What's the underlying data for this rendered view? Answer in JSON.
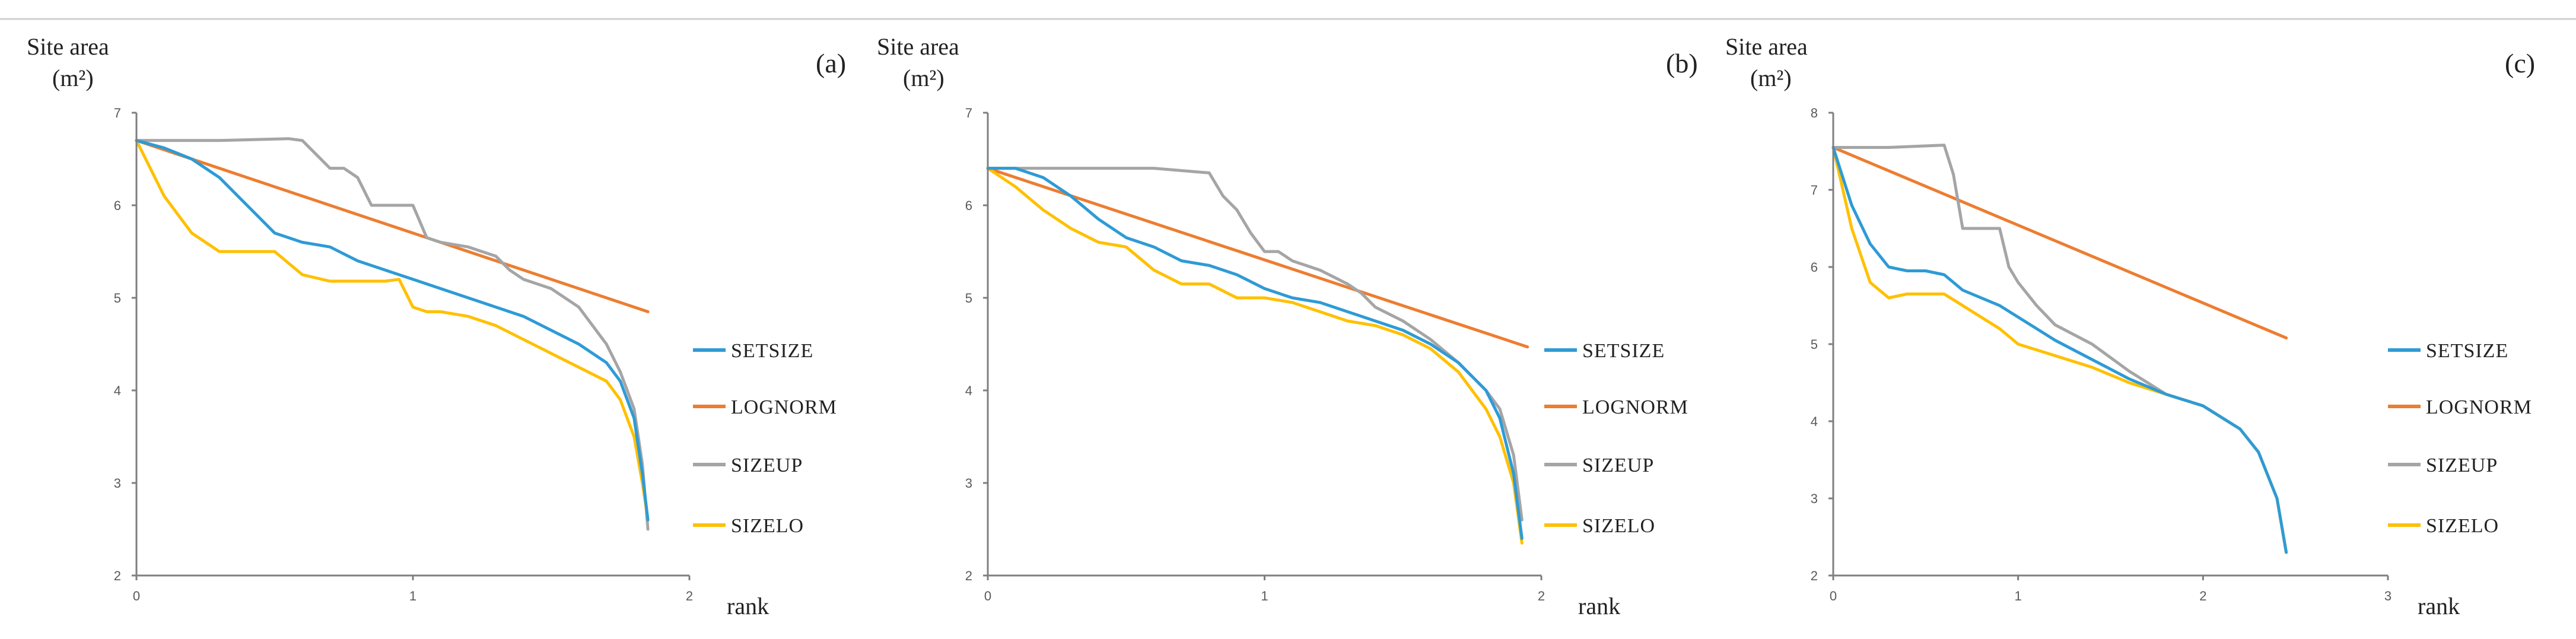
{
  "chart_data": [
    {
      "type": "line",
      "panel_label": "(a)",
      "ylabel": "Site area",
      "yunit": "(m²)",
      "xlabel": "rank",
      "xlim": [
        0,
        2
      ],
      "ylim": [
        2,
        7
      ],
      "xticks": [
        "0",
        "1",
        "2"
      ],
      "yticks": [
        "2",
        "3",
        "4",
        "5",
        "6",
        "7"
      ],
      "legend_position": "right",
      "series": [
        {
          "name": "SETSIZE",
          "color": "#2e9bd6",
          "x": [
            0,
            0.1,
            0.2,
            0.3,
            0.4,
            0.5,
            0.6,
            0.7,
            0.8,
            0.9,
            1.0,
            1.1,
            1.2,
            1.3,
            1.4,
            1.5,
            1.6,
            1.7,
            1.75,
            1.8,
            1.83,
            1.85
          ],
          "y": [
            6.7,
            6.62,
            6.5,
            6.3,
            6.0,
            5.7,
            5.6,
            5.55,
            5.4,
            5.3,
            5.2,
            5.1,
            5.0,
            4.9,
            4.8,
            4.65,
            4.5,
            4.3,
            4.1,
            3.7,
            3.1,
            2.6
          ]
        },
        {
          "name": "LOGNORM",
          "color": "#ed7d31",
          "x": [
            0,
            1.85
          ],
          "y": [
            6.7,
            4.85
          ]
        },
        {
          "name": "SIZEUP",
          "color": "#a5a5a5",
          "x": [
            0,
            0.3,
            0.55,
            0.6,
            0.7,
            0.75,
            0.8,
            0.85,
            0.9,
            0.95,
            1.0,
            1.05,
            1.1,
            1.2,
            1.3,
            1.35,
            1.4,
            1.5,
            1.6,
            1.7,
            1.75,
            1.8,
            1.83,
            1.85
          ],
          "y": [
            6.7,
            6.7,
            6.72,
            6.7,
            6.4,
            6.4,
            6.3,
            6.0,
            6.0,
            6.0,
            6.0,
            5.65,
            5.6,
            5.55,
            5.45,
            5.3,
            5.2,
            5.1,
            4.9,
            4.5,
            4.2,
            3.8,
            3.2,
            2.5
          ]
        },
        {
          "name": "SIZELO",
          "color": "#ffc000",
          "x": [
            0,
            0.1,
            0.2,
            0.3,
            0.4,
            0.5,
            0.6,
            0.7,
            0.8,
            0.9,
            0.95,
            1.0,
            1.05,
            1.1,
            1.2,
            1.3,
            1.4,
            1.5,
            1.6,
            1.7,
            1.75,
            1.8,
            1.83,
            1.85
          ],
          "y": [
            6.7,
            6.1,
            5.7,
            5.5,
            5.5,
            5.5,
            5.25,
            5.18,
            5.18,
            5.18,
            5.2,
            4.9,
            4.85,
            4.85,
            4.8,
            4.7,
            4.55,
            4.4,
            4.25,
            4.1,
            3.9,
            3.5,
            3.0,
            2.6
          ]
        }
      ]
    },
    {
      "type": "line",
      "panel_label": "(b)",
      "ylabel": "Site area",
      "yunit": "(m²)",
      "xlabel": "rank",
      "xlim": [
        0,
        2
      ],
      "ylim": [
        2,
        7
      ],
      "xticks": [
        "0",
        "1",
        "2"
      ],
      "yticks": [
        "2",
        "3",
        "4",
        "5",
        "6",
        "7"
      ],
      "legend_position": "right",
      "series": [
        {
          "name": "SETSIZE",
          "color": "#2e9bd6",
          "x": [
            0,
            0.1,
            0.2,
            0.3,
            0.4,
            0.5,
            0.6,
            0.7,
            0.8,
            0.9,
            1.0,
            1.1,
            1.2,
            1.3,
            1.4,
            1.5,
            1.6,
            1.7,
            1.8,
            1.85,
            1.9,
            1.93
          ],
          "y": [
            6.4,
            6.4,
            6.3,
            6.1,
            5.85,
            5.65,
            5.55,
            5.4,
            5.35,
            5.25,
            5.1,
            5.0,
            4.95,
            4.85,
            4.75,
            4.65,
            4.5,
            4.3,
            4.0,
            3.7,
            3.1,
            2.4
          ]
        },
        {
          "name": "LOGNORM",
          "color": "#ed7d31",
          "x": [
            0,
            1.95
          ],
          "y": [
            6.4,
            4.47
          ]
        },
        {
          "name": "SIZEUP",
          "color": "#a5a5a5",
          "x": [
            0,
            0.3,
            0.6,
            0.8,
            0.85,
            0.9,
            0.95,
            1.0,
            1.05,
            1.1,
            1.2,
            1.3,
            1.35,
            1.4,
            1.5,
            1.6,
            1.7,
            1.8,
            1.85,
            1.9,
            1.93
          ],
          "y": [
            6.4,
            6.4,
            6.4,
            6.35,
            6.1,
            5.95,
            5.7,
            5.5,
            5.5,
            5.4,
            5.3,
            5.15,
            5.05,
            4.9,
            4.75,
            4.55,
            4.3,
            4.0,
            3.8,
            3.3,
            2.6
          ]
        },
        {
          "name": "SIZELO",
          "color": "#ffc000",
          "x": [
            0,
            0.1,
            0.2,
            0.3,
            0.4,
            0.5,
            0.6,
            0.7,
            0.8,
            0.9,
            1.0,
            1.1,
            1.2,
            1.3,
            1.4,
            1.5,
            1.6,
            1.7,
            1.8,
            1.85,
            1.9,
            1.93
          ],
          "y": [
            6.4,
            6.2,
            5.95,
            5.75,
            5.6,
            5.55,
            5.3,
            5.15,
            5.15,
            5.0,
            5.0,
            4.95,
            4.85,
            4.75,
            4.7,
            4.6,
            4.45,
            4.2,
            3.8,
            3.5,
            3.0,
            2.35
          ]
        }
      ]
    },
    {
      "type": "line",
      "panel_label": "(c)",
      "ylabel": "Site area",
      "yunit": "(m²)",
      "xlabel": "rank",
      "xlim": [
        0,
        3
      ],
      "ylim": [
        2,
        8
      ],
      "xticks": [
        "0",
        "1",
        "2",
        "3"
      ],
      "yticks": [
        "2",
        "3",
        "4",
        "5",
        "6",
        "7",
        "8"
      ],
      "legend_position": "right",
      "series": [
        {
          "name": "SETSIZE",
          "color": "#2e9bd6",
          "x": [
            0,
            0.1,
            0.2,
            0.3,
            0.4,
            0.5,
            0.6,
            0.7,
            0.8,
            0.9,
            1.0,
            1.2,
            1.4,
            1.6,
            1.8,
            2.0,
            2.2,
            2.3,
            2.4,
            2.45
          ],
          "y": [
            7.55,
            6.8,
            6.3,
            6.0,
            5.95,
            5.95,
            5.9,
            5.7,
            5.6,
            5.5,
            5.35,
            5.05,
            4.8,
            4.55,
            4.35,
            4.2,
            3.9,
            3.6,
            3.0,
            2.3
          ]
        },
        {
          "name": "LOGNORM",
          "color": "#ed7d31",
          "x": [
            0,
            2.45
          ],
          "y": [
            7.55,
            5.08
          ]
        },
        {
          "name": "SIZEUP",
          "color": "#a5a5a5",
          "x": [
            0,
            0.3,
            0.6,
            0.65,
            0.7,
            0.8,
            0.9,
            0.95,
            1.0,
            1.1,
            1.2,
            1.4,
            1.6,
            1.8,
            2.0,
            2.2,
            2.3,
            2.4,
            2.45
          ],
          "y": [
            7.55,
            7.55,
            7.58,
            7.2,
            6.5,
            6.5,
            6.5,
            6.0,
            5.8,
            5.5,
            5.25,
            5.0,
            4.65,
            4.35,
            4.2,
            3.9,
            3.6,
            3.0,
            2.3
          ]
        },
        {
          "name": "SIZELO",
          "color": "#ffc000",
          "x": [
            0,
            0.1,
            0.2,
            0.3,
            0.4,
            0.5,
            0.6,
            0.7,
            0.8,
            0.9,
            1.0,
            1.2,
            1.4,
            1.6,
            1.8,
            2.0,
            2.2,
            2.3,
            2.4,
            2.45
          ],
          "y": [
            7.55,
            6.5,
            5.8,
            5.6,
            5.65,
            5.65,
            5.65,
            5.5,
            5.35,
            5.2,
            5.0,
            4.85,
            4.7,
            4.5,
            4.35,
            4.2,
            3.9,
            3.6,
            3.0,
            2.3
          ]
        }
      ]
    }
  ]
}
